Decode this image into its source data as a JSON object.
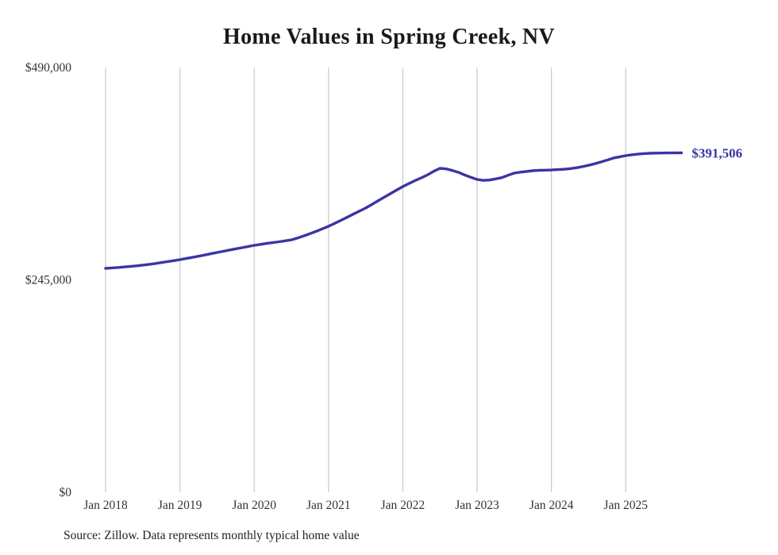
{
  "page": {
    "source_note": "Source: Zillow. Data represents monthly typical home value"
  },
  "chart_data": {
    "type": "line",
    "title": "Home Values in Spring Creek, NV",
    "series_name": "Monthly typical home value",
    "x": [
      "2018-01",
      "2018-02",
      "2018-03",
      "2018-04",
      "2018-05",
      "2018-06",
      "2018-07",
      "2018-08",
      "2018-09",
      "2018-10",
      "2018-11",
      "2018-12",
      "2019-01",
      "2019-02",
      "2019-03",
      "2019-04",
      "2019-05",
      "2019-06",
      "2019-07",
      "2019-08",
      "2019-09",
      "2019-10",
      "2019-11",
      "2019-12",
      "2020-01",
      "2020-02",
      "2020-03",
      "2020-04",
      "2020-05",
      "2020-06",
      "2020-07",
      "2020-08",
      "2020-09",
      "2020-10",
      "2020-11",
      "2020-12",
      "2021-01",
      "2021-02",
      "2021-03",
      "2021-04",
      "2021-05",
      "2021-06",
      "2021-07",
      "2021-08",
      "2021-09",
      "2021-10",
      "2021-11",
      "2021-12",
      "2022-01",
      "2022-02",
      "2022-03",
      "2022-04",
      "2022-05",
      "2022-06",
      "2022-07",
      "2022-08",
      "2022-09",
      "2022-10",
      "2022-11",
      "2022-12",
      "2023-01",
      "2023-02",
      "2023-03",
      "2023-04",
      "2023-05",
      "2023-06",
      "2023-07",
      "2023-08",
      "2023-09",
      "2023-10",
      "2023-11",
      "2023-12",
      "2024-01",
      "2024-02",
      "2024-03",
      "2024-04",
      "2024-05",
      "2024-06",
      "2024-07",
      "2024-08",
      "2024-09",
      "2024-10",
      "2024-11",
      "2024-12",
      "2025-01",
      "2025-02",
      "2025-03",
      "2025-04",
      "2025-05",
      "2025-06",
      "2025-07",
      "2025-08",
      "2025-09",
      "2025-10"
    ],
    "values": [
      258300,
      258800,
      259300,
      259900,
      260500,
      261200,
      262000,
      262900,
      263900,
      265000,
      266100,
      267200,
      268400,
      269600,
      270900,
      272300,
      273700,
      275100,
      276600,
      278000,
      279400,
      280800,
      282100,
      283500,
      284800,
      285900,
      287000,
      288000,
      289000,
      290100,
      291200,
      293300,
      295700,
      298300,
      301000,
      303900,
      306800,
      310200,
      313700,
      317200,
      320800,
      324300,
      327900,
      332000,
      336200,
      340300,
      344500,
      348600,
      352600,
      356200,
      359600,
      362800,
      366200,
      370300,
      373700,
      373000,
      371200,
      369000,
      366000,
      363300,
      360900,
      359800,
      360200,
      361500,
      363000,
      365700,
      368200,
      369300,
      370100,
      370900,
      371400,
      371600,
      371800,
      372200,
      372600,
      373300,
      374300,
      375600,
      377200,
      379000,
      381000,
      383200,
      385500,
      386900,
      388300,
      389300,
      390100,
      390700,
      391100,
      391300,
      391400,
      391450,
      391480,
      391506
    ],
    "x_tick_labels": [
      "Jan 2018",
      "Jan 2019",
      "Jan 2020",
      "Jan 2021",
      "Jan 2022",
      "Jan 2023",
      "Jan 2024",
      "Jan 2025"
    ],
    "y_ticks": [
      {
        "value": 0,
        "label": "$0"
      },
      {
        "value": 245000,
        "label": "$245,000"
      },
      {
        "value": 490000,
        "label": "$490,000"
      }
    ],
    "ylim": [
      0,
      490000
    ],
    "end_label": "$391,506",
    "grid": "vertical-only",
    "legend": "none",
    "colors": {
      "line": "#3b34a6",
      "grid": "#cccccc",
      "axis_text": "#333333",
      "title_text": "#1a1a1a"
    }
  }
}
